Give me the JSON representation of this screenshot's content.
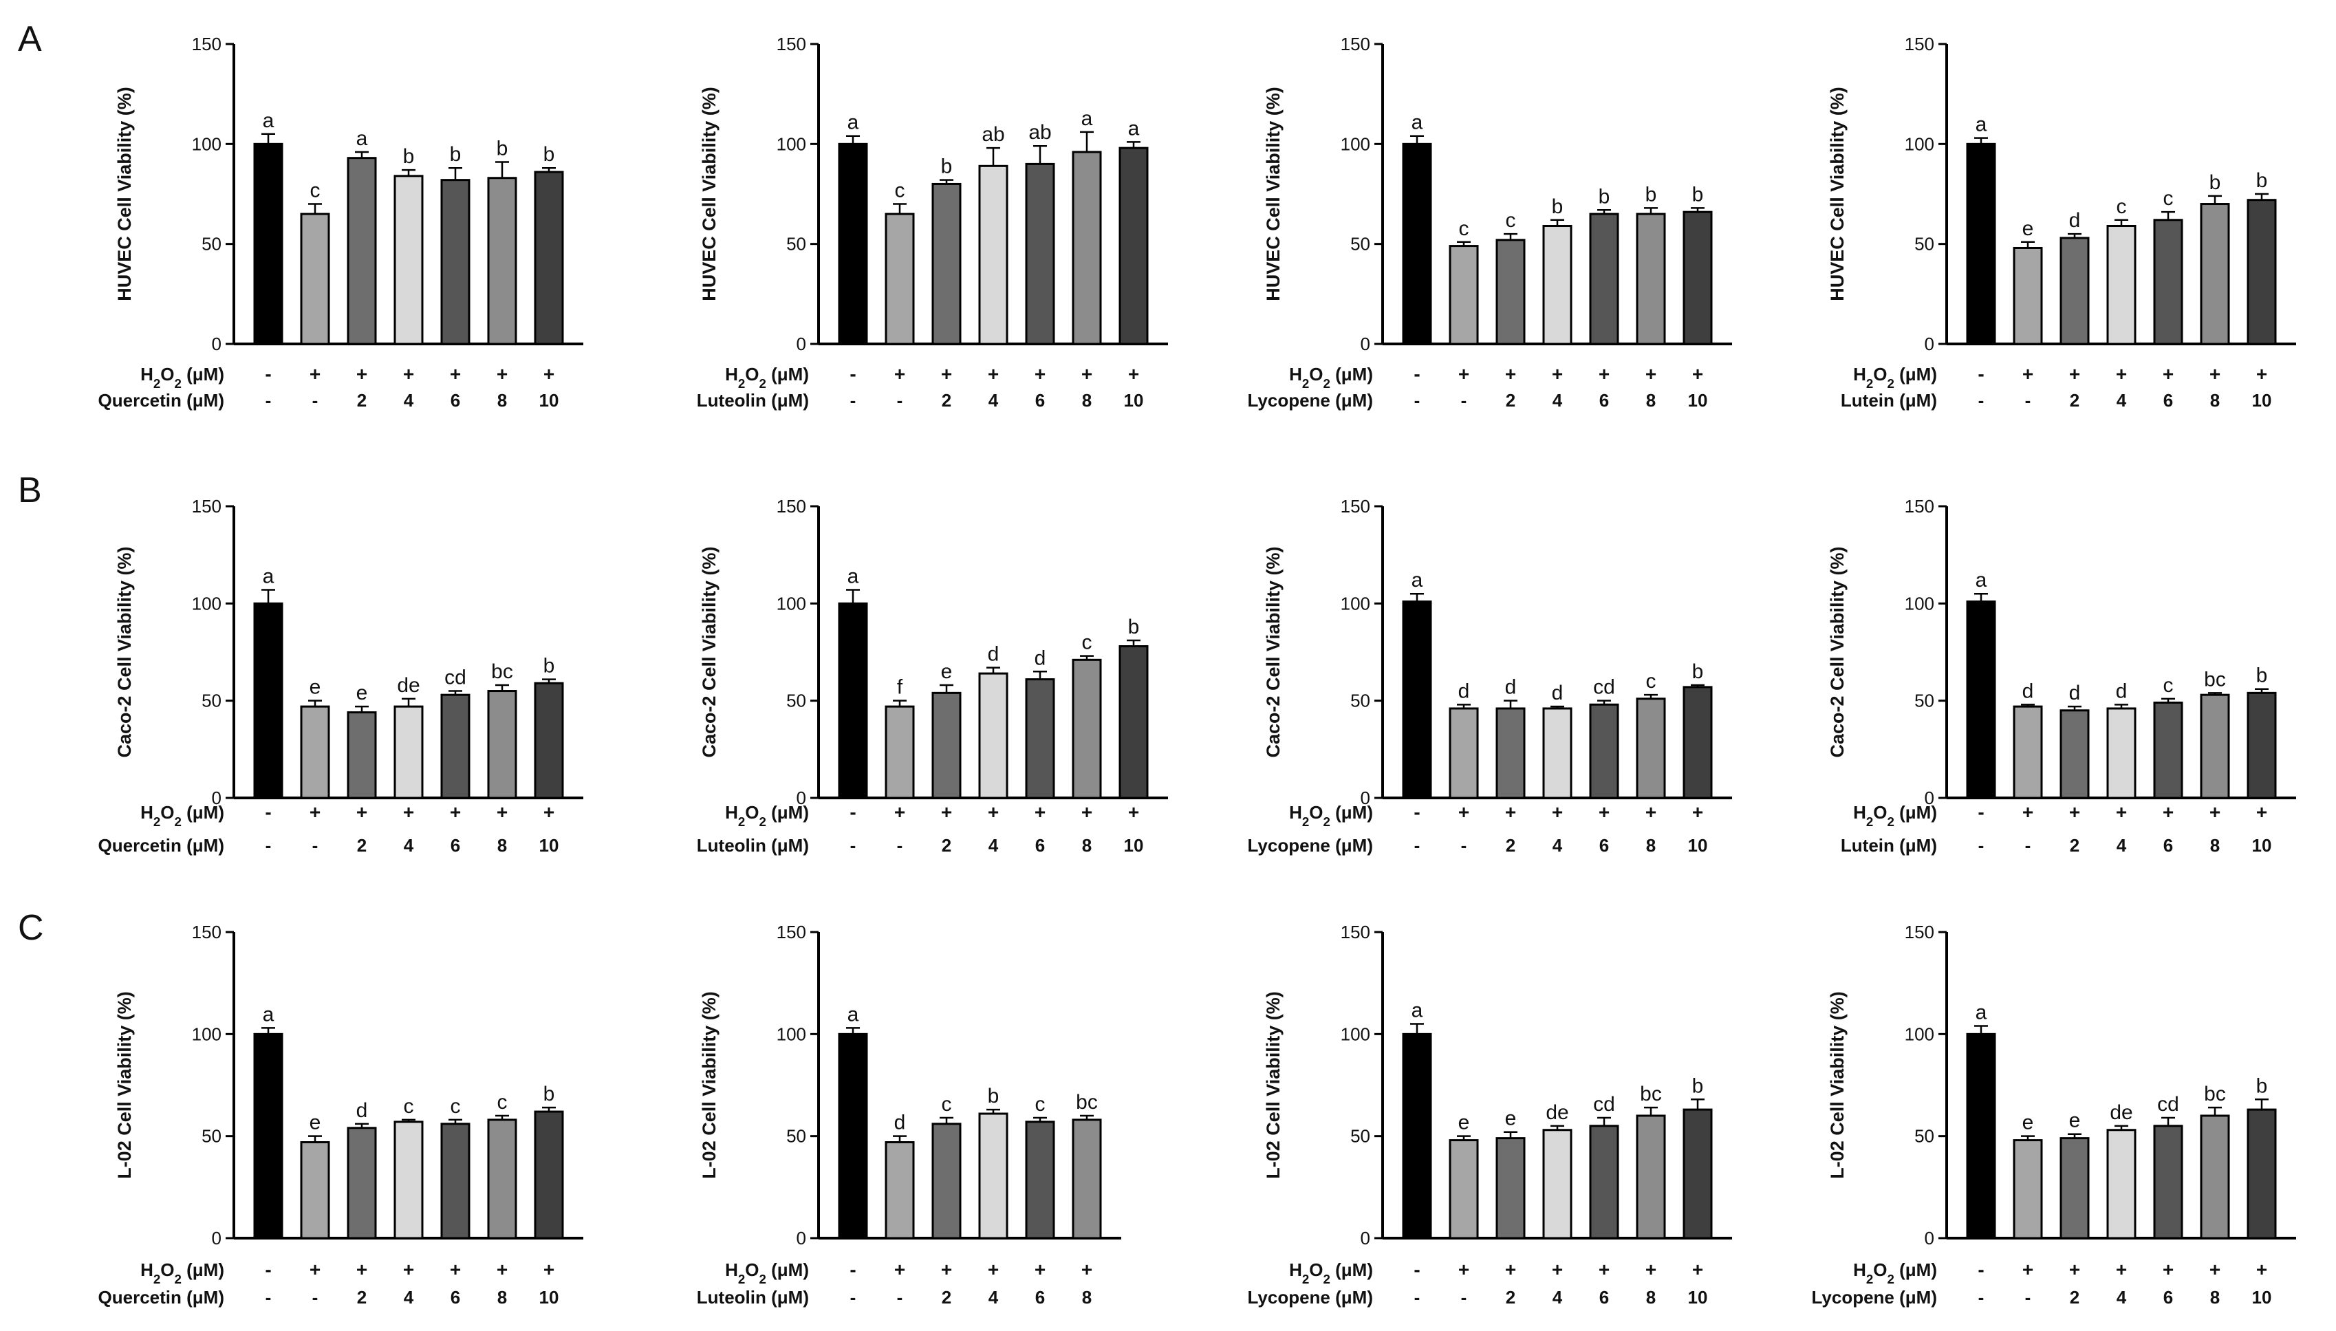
{
  "figure": {
    "row_labels": [
      "A",
      "B",
      "C"
    ],
    "colors": {
      "control": "#000000",
      "model": "#a6a6a6",
      "d2": "#6e6e6e",
      "d4": "#d9d9d9",
      "d6": "#565656",
      "d8": "#8c8c8c",
      "d10": "#3f3f3f",
      "axis": "#000000"
    }
  },
  "chart_data": [
    {
      "type": "bar",
      "row": "A",
      "ylabel": "HUVEC Cell Viability (%)",
      "ylim": [
        0,
        150
      ],
      "yticks": [
        0,
        50,
        100,
        150
      ],
      "treatment_label": "H2O2 (μM)",
      "compound_label": "Quercetin  (μM)",
      "categories": [
        "-/-",
        "+/-",
        "+/2",
        "+/4",
        "+/6",
        "+/8",
        "+/10"
      ],
      "h2o2_row": [
        "-",
        "+",
        "+",
        "+",
        "+",
        "+",
        "+"
      ],
      "compound_row": [
        "-",
        "-",
        "2",
        "4",
        "6",
        "8",
        "10"
      ],
      "values": [
        100,
        65,
        93,
        84,
        82,
        83,
        86
      ],
      "errors": [
        5,
        5,
        3,
        3,
        6,
        8,
        2
      ],
      "significance": [
        "a",
        "c",
        "a",
        "b",
        "b",
        "b",
        "b"
      ]
    },
    {
      "type": "bar",
      "row": "A",
      "ylabel": "HUVEC Cell Viability (%)",
      "ylim": [
        0,
        150
      ],
      "yticks": [
        0,
        50,
        100,
        150
      ],
      "treatment_label": "H2O2 (μM)",
      "compound_label": "Luteolin  (μM)",
      "categories": [
        "-/-",
        "+/-",
        "+/2",
        "+/4",
        "+/6",
        "+/8",
        "+/10"
      ],
      "h2o2_row": [
        "-",
        "+",
        "+",
        "+",
        "+",
        "+",
        "+"
      ],
      "compound_row": [
        "-",
        "-",
        "2",
        "4",
        "6",
        "8",
        "10"
      ],
      "values": [
        100,
        65,
        80,
        89,
        90,
        96,
        98
      ],
      "errors": [
        4,
        5,
        2,
        9,
        9,
        10,
        3
      ],
      "significance": [
        "a",
        "c",
        "b",
        "ab",
        "ab",
        "a",
        "a"
      ]
    },
    {
      "type": "bar",
      "row": "A",
      "ylabel": "HUVEC Cell Viability (%)",
      "ylim": [
        0,
        150
      ],
      "yticks": [
        0,
        50,
        100,
        150
      ],
      "treatment_label": "H2O2 (μM)",
      "compound_label": "Lycopene  (μM)",
      "categories": [
        "-/-",
        "+/-",
        "+/2",
        "+/4",
        "+/6",
        "+/8",
        "+/10"
      ],
      "h2o2_row": [
        "-",
        "+",
        "+",
        "+",
        "+",
        "+",
        "+"
      ],
      "compound_row": [
        "-",
        "-",
        "2",
        "4",
        "6",
        "8",
        "10"
      ],
      "values": [
        100,
        49,
        52,
        59,
        65,
        65,
        66
      ],
      "errors": [
        4,
        2,
        3,
        3,
        2,
        3,
        2
      ],
      "significance": [
        "a",
        "c",
        "c",
        "b",
        "b",
        "b",
        "b"
      ]
    },
    {
      "type": "bar",
      "row": "A",
      "ylabel": "HUVEC Cell Viability (%)",
      "ylim": [
        0,
        150
      ],
      "yticks": [
        0,
        50,
        100,
        150
      ],
      "treatment_label": "H2O2 (μM)",
      "compound_label": "Lutein  (μM)",
      "categories": [
        "-/-",
        "+/-",
        "+/2",
        "+/4",
        "+/6",
        "+/8",
        "+/10"
      ],
      "h2o2_row": [
        "-",
        "+",
        "+",
        "+",
        "+",
        "+",
        "+"
      ],
      "compound_row": [
        "-",
        "-",
        "2",
        "4",
        "6",
        "8",
        "10"
      ],
      "values": [
        100,
        48,
        53,
        59,
        62,
        70,
        72
      ],
      "errors": [
        3,
        3,
        2,
        3,
        4,
        4,
        3
      ],
      "significance": [
        "a",
        "e",
        "d",
        "c",
        "c",
        "b",
        "b"
      ]
    },
    {
      "type": "bar",
      "row": "B",
      "ylabel": "Caco-2 Cell Viability (%)",
      "ylim": [
        0,
        150
      ],
      "yticks": [
        0,
        50,
        100,
        150
      ],
      "treatment_label": "H2O2 (μM)",
      "compound_label": "Quercetin  (μM)",
      "categories": [
        "-/-",
        "+/-",
        "+/2",
        "+/4",
        "+/6",
        "+/8",
        "+/10"
      ],
      "h2o2_row": [
        "-",
        "+",
        "+",
        "+",
        "+",
        "+",
        "+"
      ],
      "compound_row": [
        "-",
        "-",
        "2",
        "4",
        "6",
        "8",
        "10"
      ],
      "values": [
        100,
        47,
        44,
        47,
        53,
        55,
        59
      ],
      "errors": [
        7,
        3,
        3,
        4,
        2,
        3,
        2
      ],
      "significance": [
        "a",
        "e",
        "e",
        "de",
        "cd",
        "bc",
        "b"
      ]
    },
    {
      "type": "bar",
      "row": "B",
      "ylabel": "Caco-2 Cell Viability (%)",
      "ylim": [
        0,
        150
      ],
      "yticks": [
        0,
        50,
        100,
        150
      ],
      "treatment_label": "H2O2 (μM)",
      "compound_label": "Luteolin  (μM)",
      "categories": [
        "-/-",
        "+/-",
        "+/2",
        "+/4",
        "+/6",
        "+/8",
        "+/10"
      ],
      "h2o2_row": [
        "-",
        "+",
        "+",
        "+",
        "+",
        "+",
        "+"
      ],
      "compound_row": [
        "-",
        "-",
        "2",
        "4",
        "6",
        "8",
        "10"
      ],
      "values": [
        100,
        47,
        54,
        64,
        61,
        71,
        78
      ],
      "errors": [
        7,
        3,
        4,
        3,
        4,
        2,
        3
      ],
      "significance": [
        "a",
        "f",
        "e",
        "d",
        "d",
        "c",
        "b"
      ]
    },
    {
      "type": "bar",
      "row": "B",
      "ylabel": "Caco-2 Cell Viability (%)",
      "ylim": [
        0,
        150
      ],
      "yticks": [
        0,
        50,
        100,
        150
      ],
      "treatment_label": "H2O2 (μM)",
      "compound_label": "Lycopene  (μM)",
      "categories": [
        "-/-",
        "+/-",
        "+/2",
        "+/4",
        "+/6",
        "+/8",
        "+/10"
      ],
      "h2o2_row": [
        "-",
        "+",
        "+",
        "+",
        "+",
        "+",
        "+"
      ],
      "compound_row": [
        "-",
        "-",
        "2",
        "4",
        "6",
        "8",
        "10"
      ],
      "values": [
        101,
        46,
        46,
        46,
        48,
        51,
        57
      ],
      "errors": [
        4,
        2,
        4,
        1,
        2,
        2,
        1
      ],
      "significance": [
        "a",
        "d",
        "d",
        "d",
        "cd",
        "c",
        "b"
      ]
    },
    {
      "type": "bar",
      "row": "B",
      "ylabel": "Caco-2 Cell Viability (%)",
      "ylim": [
        0,
        150
      ],
      "yticks": [
        0,
        50,
        100,
        150
      ],
      "treatment_label": "H2O2 (μM)",
      "compound_label": "Lutein  (μM)",
      "categories": [
        "-/-",
        "+/-",
        "+/2",
        "+/4",
        "+/6",
        "+/8",
        "+/10"
      ],
      "h2o2_row": [
        "-",
        "+",
        "+",
        "+",
        "+",
        "+",
        "+"
      ],
      "compound_row": [
        "-",
        "-",
        "2",
        "4",
        "6",
        "8",
        "10"
      ],
      "values": [
        101,
        47,
        45,
        46,
        49,
        53,
        54
      ],
      "errors": [
        4,
        1,
        2,
        2,
        2,
        1,
        2
      ],
      "significance": [
        "a",
        "d",
        "d",
        "d",
        "c",
        "bc",
        "b"
      ]
    },
    {
      "type": "bar",
      "row": "C",
      "ylabel": "L-02 Cell Viability (%)",
      "ylim": [
        0,
        150
      ],
      "yticks": [
        0,
        50,
        100,
        150
      ],
      "treatment_label": "H2O2 (μM)",
      "compound_label": "Quercetin  (μM)",
      "categories": [
        "-/-",
        "+/-",
        "+/2",
        "+/4",
        "+/6",
        "+/8",
        "+/10"
      ],
      "h2o2_row": [
        "-",
        "+",
        "+",
        "+",
        "+",
        "+",
        "+"
      ],
      "compound_row": [
        "-",
        "-",
        "2",
        "4",
        "6",
        "8",
        "10"
      ],
      "values": [
        100,
        47,
        54,
        57,
        56,
        58,
        62
      ],
      "errors": [
        3,
        3,
        2,
        1,
        2,
        2,
        2
      ],
      "significance": [
        "a",
        "e",
        "d",
        "c",
        "c",
        "c",
        "b"
      ]
    },
    {
      "type": "bar",
      "row": "C",
      "ylabel": "L-02 Cell Viability (%)",
      "ylim": [
        0,
        150
      ],
      "yticks": [
        0,
        50,
        100,
        150
      ],
      "treatment_label": "H2O2 (μM)",
      "compound_label": "Luteolin  (μM)",
      "categories": [
        "-/-",
        "+/-",
        "+/2",
        "+/4",
        "+/6",
        "+/8"
      ],
      "h2o2_row": [
        "-",
        "+",
        "+",
        "+",
        "+",
        "+"
      ],
      "compound_row": [
        "-",
        "-",
        "2",
        "4",
        "6",
        "8"
      ],
      "values": [
        100,
        47,
        56,
        61,
        57,
        58
      ],
      "errors": [
        3,
        3,
        3,
        2,
        2,
        2
      ],
      "significance": [
        "a",
        "d",
        "c",
        "b",
        "c",
        "bc"
      ]
    },
    {
      "type": "bar",
      "row": "C",
      "ylabel": "L-02 Cell Viability (%)",
      "ylim": [
        0,
        150
      ],
      "yticks": [
        0,
        50,
        100,
        150
      ],
      "treatment_label": "H2O2 (μM)",
      "compound_label": "Lycopene  (μM)",
      "categories": [
        "-/-",
        "+/-",
        "+/2",
        "+/4",
        "+/6",
        "+/8",
        "+/10"
      ],
      "h2o2_row": [
        "-",
        "+",
        "+",
        "+",
        "+",
        "+",
        "+"
      ],
      "compound_row": [
        "-",
        "-",
        "2",
        "4",
        "6",
        "8",
        "10"
      ],
      "values": [
        100,
        48,
        49,
        53,
        55,
        60,
        63
      ],
      "errors": [
        5,
        2,
        3,
        2,
        4,
        4,
        5
      ],
      "significance": [
        "a",
        "e",
        "e",
        "de",
        "cd",
        "bc",
        "b"
      ]
    },
    {
      "type": "bar",
      "row": "C",
      "ylabel": "L-02 Cell Viability (%)",
      "ylim": [
        0,
        150
      ],
      "yticks": [
        0,
        50,
        100,
        150
      ],
      "treatment_label": "H2O2 (μM)",
      "compound_label": "Lycopene  (μM)",
      "categories": [
        "-/-",
        "+/-",
        "+/2",
        "+/4",
        "+/6",
        "+/8",
        "+/10"
      ],
      "h2o2_row": [
        "-",
        "+",
        "+",
        "+",
        "+",
        "+",
        "+"
      ],
      "compound_row": [
        "-",
        "-",
        "2",
        "4",
        "6",
        "8",
        "10"
      ],
      "values": [
        100,
        48,
        49,
        53,
        55,
        60,
        63
      ],
      "errors": [
        4,
        2,
        2,
        2,
        4,
        4,
        5
      ],
      "significance": [
        "a",
        "e",
        "e",
        "de",
        "cd",
        "bc",
        "b"
      ]
    }
  ]
}
